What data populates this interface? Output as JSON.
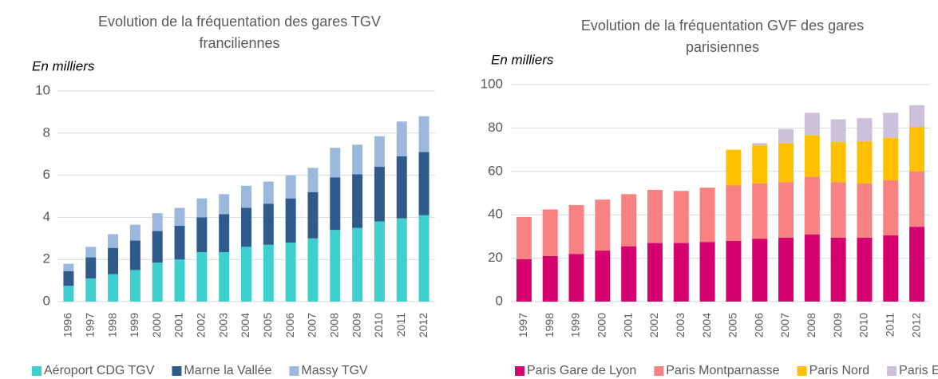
{
  "chart_data": [
    {
      "type": "bar",
      "stacked": true,
      "title": "Evolution de la fréquentation des gares TGV franciliennes",
      "y_label": "En milliers",
      "categories": [
        "1996",
        "1997",
        "1998",
        "1999",
        "2000",
        "2001",
        "2002",
        "2003",
        "2004",
        "2005",
        "2006",
        "2007",
        "2008",
        "2009",
        "2010",
        "2011",
        "2012"
      ],
      "series": [
        {
          "name": "Aéroport CDG TGV",
          "color": "#3ecfcf",
          "values": [
            0.75,
            1.1,
            1.3,
            1.5,
            1.85,
            2.0,
            2.35,
            2.35,
            2.6,
            2.7,
            2.8,
            3.0,
            3.4,
            3.5,
            3.8,
            3.95,
            4.1
          ]
        },
        {
          "name": "Marne la Vallée",
          "color": "#2f5b8c",
          "values": [
            0.7,
            1.0,
            1.25,
            1.4,
            1.5,
            1.6,
            1.65,
            1.8,
            1.85,
            1.95,
            2.1,
            2.2,
            2.5,
            2.55,
            2.6,
            2.95,
            3.0
          ]
        },
        {
          "name": "Massy TGV",
          "color": "#9db8dd",
          "values": [
            0.35,
            0.5,
            0.65,
            0.75,
            0.85,
            0.85,
            0.9,
            0.95,
            1.05,
            1.05,
            1.1,
            1.15,
            1.4,
            1.4,
            1.45,
            1.65,
            1.7
          ]
        }
      ],
      "ylim": [
        0,
        10
      ],
      "yticks": [
        0,
        2,
        4,
        6,
        8,
        10
      ],
      "grid": true,
      "legend": "bottom"
    },
    {
      "type": "bar",
      "stacked": true,
      "title": "Evolution de la fréquentation GVF des gares parisiennes",
      "y_label": "En milliers",
      "categories": [
        "1997",
        "1998",
        "1999",
        "2000",
        "2001",
        "2002",
        "2003",
        "2004",
        "2005",
        "2006",
        "2007",
        "2008",
        "2009",
        "2010",
        "2011",
        "2012"
      ],
      "series": [
        {
          "name": "Paris Gare de Lyon",
          "color": "#d6006e",
          "values": [
            19.5,
            21,
            22,
            23.5,
            25.5,
            27,
            27,
            27.5,
            28,
            29,
            29.5,
            31,
            29.5,
            29.5,
            30.5,
            34.5
          ]
        },
        {
          "name": "Paris Montparnasse",
          "color": "#f88282",
          "values": [
            19.5,
            21.5,
            22.5,
            23.5,
            24,
            24.5,
            24,
            25,
            25.5,
            25.5,
            25.5,
            26.5,
            25.5,
            25,
            25.5,
            25.5
          ]
        },
        {
          "name": "Paris Nord",
          "color": "#ffc000",
          "values": [
            null,
            null,
            null,
            null,
            null,
            null,
            null,
            null,
            16.5,
            17.5,
            18,
            19,
            18.5,
            19.5,
            19.5,
            20.5
          ]
        },
        {
          "name": "Paris Est",
          "color": "#ccc0da",
          "values": [
            null,
            null,
            null,
            null,
            null,
            null,
            null,
            null,
            null,
            1,
            6.5,
            10.5,
            10.5,
            10.5,
            11.5,
            10
          ]
        }
      ],
      "ylim": [
        0,
        100
      ],
      "yticks": [
        0,
        20,
        40,
        60,
        80,
        100
      ],
      "grid": true,
      "legend": "bottom"
    }
  ]
}
